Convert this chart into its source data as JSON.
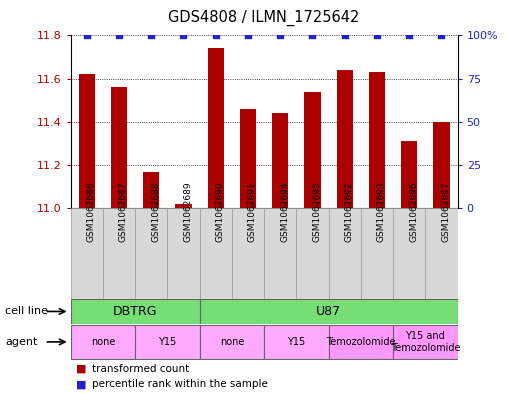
{
  "title": "GDS4808 / ILMN_1725642",
  "samples": [
    "GSM1062686",
    "GSM1062687",
    "GSM1062688",
    "GSM1062689",
    "GSM1062690",
    "GSM1062691",
    "GSM1062694",
    "GSM1062695",
    "GSM1062692",
    "GSM1062693",
    "GSM1062696",
    "GSM1062697"
  ],
  "bar_values": [
    11.62,
    11.56,
    11.17,
    11.02,
    11.74,
    11.46,
    11.44,
    11.54,
    11.64,
    11.63,
    11.31,
    11.4
  ],
  "percentile_values": [
    100,
    100,
    100,
    100,
    100,
    100,
    100,
    100,
    100,
    100,
    100,
    100
  ],
  "bar_color": "#AA0000",
  "dot_color": "#2222CC",
  "ylim_left": [
    11.0,
    11.8
  ],
  "ylim_right": [
    0,
    100
  ],
  "yticks_left": [
    11.0,
    11.2,
    11.4,
    11.6,
    11.8
  ],
  "yticks_right": [
    0,
    25,
    50,
    75,
    100
  ],
  "cell_line_labels": [
    "DBTRG",
    "U87"
  ],
  "cell_line_spans": [
    [
      0,
      3
    ],
    [
      4,
      11
    ]
  ],
  "cell_line_color": "#77DD77",
  "sample_box_color": "#D8D8D8",
  "agent_groups": [
    {
      "label": "none",
      "span": [
        0,
        1
      ],
      "color": "#FFAAFF"
    },
    {
      "label": "Y15",
      "span": [
        2,
        3
      ],
      "color": "#FFAAFF"
    },
    {
      "label": "none",
      "span": [
        4,
        5
      ],
      "color": "#FFAAFF"
    },
    {
      "label": "Y15",
      "span": [
        6,
        7
      ],
      "color": "#FFAAFF"
    },
    {
      "label": "Temozolomide",
      "span": [
        8,
        9
      ],
      "color": "#FF99FF"
    },
    {
      "label": "Y15 and\nTemozolomide",
      "span": [
        10,
        11
      ],
      "color": "#FF99FF"
    }
  ],
  "legend_bar_label": "transformed count",
  "legend_dot_label": "percentile rank within the sample",
  "cell_line_row_label": "cell line",
  "agent_row_label": "agent",
  "bar_width": 0.5
}
